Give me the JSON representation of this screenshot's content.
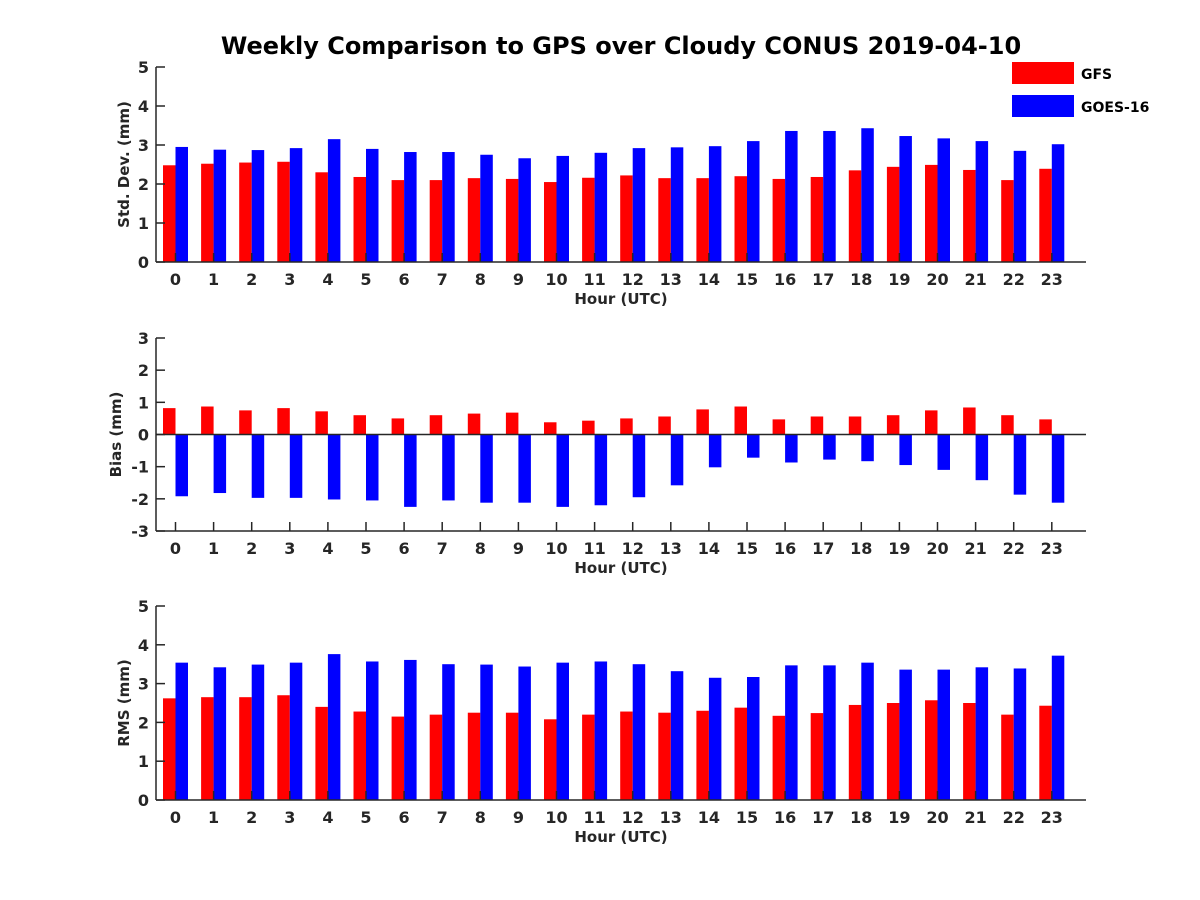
{
  "figure": {
    "title": "Weekly Comparison to GPS over Cloudy CONUS 2019-04-10"
  },
  "legend": [
    {
      "name": "GFS",
      "color": "#ff0000"
    },
    {
      "name": "GOES-16",
      "color": "#0000ff"
    }
  ],
  "chart_data": [
    {
      "type": "bar",
      "title": "Weekly Comparison to GPS over Cloudy CONUS 2019-04-10",
      "xlabel": "Hour (UTC)",
      "ylabel": "Std. Dev. (mm)",
      "ylim": [
        0,
        5
      ],
      "yticks": [
        0,
        1,
        2,
        3,
        4,
        5
      ],
      "categories": [
        "0",
        "1",
        "2",
        "3",
        "4",
        "5",
        "6",
        "7",
        "8",
        "9",
        "10",
        "11",
        "12",
        "13",
        "14",
        "15",
        "16",
        "17",
        "18",
        "19",
        "20",
        "21",
        "22",
        "23"
      ],
      "series": [
        {
          "name": "GFS",
          "color": "#ff0000",
          "values": [
            2.48,
            2.52,
            2.55,
            2.57,
            2.3,
            2.18,
            2.1,
            2.1,
            2.15,
            2.13,
            2.05,
            2.16,
            2.22,
            2.15,
            2.15,
            2.2,
            2.13,
            2.18,
            2.35,
            2.44,
            2.49,
            2.36,
            2.1,
            2.39
          ]
        },
        {
          "name": "GOES-16",
          "color": "#0000ff",
          "values": [
            2.95,
            2.88,
            2.87,
            2.92,
            3.15,
            2.9,
            2.82,
            2.82,
            2.75,
            2.66,
            2.72,
            2.8,
            2.92,
            2.94,
            2.97,
            3.1,
            3.36,
            3.36,
            3.43,
            3.23,
            3.17,
            3.1,
            2.85,
            3.02
          ]
        }
      ],
      "grid": false,
      "legend_position": "top-right"
    },
    {
      "type": "bar",
      "xlabel": "Hour (UTC)",
      "ylabel": "Bias (mm)",
      "ylim": [
        -3,
        3
      ],
      "yticks": [
        -3,
        -2,
        -1,
        0,
        1,
        2,
        3
      ],
      "categories": [
        "0",
        "1",
        "2",
        "3",
        "4",
        "5",
        "6",
        "7",
        "8",
        "9",
        "10",
        "11",
        "12",
        "13",
        "14",
        "15",
        "16",
        "17",
        "18",
        "19",
        "20",
        "21",
        "22",
        "23"
      ],
      "series": [
        {
          "name": "GFS",
          "color": "#ff0000",
          "values": [
            0.82,
            0.87,
            0.75,
            0.82,
            0.72,
            0.6,
            0.5,
            0.6,
            0.65,
            0.68,
            0.38,
            0.43,
            0.5,
            0.56,
            0.78,
            0.87,
            0.47,
            0.56,
            0.56,
            0.6,
            0.75,
            0.84,
            0.6,
            0.47
          ]
        },
        {
          "name": "GOES-16",
          "color": "#0000ff",
          "values": [
            -1.92,
            -1.82,
            -1.97,
            -1.97,
            -2.02,
            -2.05,
            -2.25,
            -2.05,
            -2.12,
            -2.12,
            -2.25,
            -2.2,
            -1.95,
            -1.58,
            -1.02,
            -0.72,
            -0.87,
            -0.78,
            -0.83,
            -0.95,
            -1.1,
            -1.42,
            -1.87,
            -2.12
          ]
        }
      ],
      "grid": false,
      "zero_line": true
    },
    {
      "type": "bar",
      "xlabel": "Hour (UTC)",
      "ylabel": "RMS (mm)",
      "ylim": [
        0,
        5
      ],
      "yticks": [
        0,
        1,
        2,
        3,
        4,
        5
      ],
      "categories": [
        "0",
        "1",
        "2",
        "3",
        "4",
        "5",
        "6",
        "7",
        "8",
        "9",
        "10",
        "11",
        "12",
        "13",
        "14",
        "15",
        "16",
        "17",
        "18",
        "19",
        "20",
        "21",
        "22",
        "23"
      ],
      "series": [
        {
          "name": "GFS",
          "color": "#ff0000",
          "values": [
            2.62,
            2.65,
            2.65,
            2.7,
            2.4,
            2.28,
            2.15,
            2.2,
            2.25,
            2.25,
            2.08,
            2.2,
            2.28,
            2.25,
            2.3,
            2.38,
            2.17,
            2.24,
            2.45,
            2.5,
            2.57,
            2.5,
            2.2,
            2.43
          ]
        },
        {
          "name": "GOES-16",
          "color": "#0000ff",
          "values": [
            3.54,
            3.42,
            3.49,
            3.54,
            3.76,
            3.57,
            3.61,
            3.5,
            3.49,
            3.44,
            3.54,
            3.57,
            3.5,
            3.32,
            3.15,
            3.17,
            3.47,
            3.47,
            3.54,
            3.36,
            3.36,
            3.42,
            3.39,
            3.72
          ]
        }
      ],
      "grid": false
    }
  ]
}
